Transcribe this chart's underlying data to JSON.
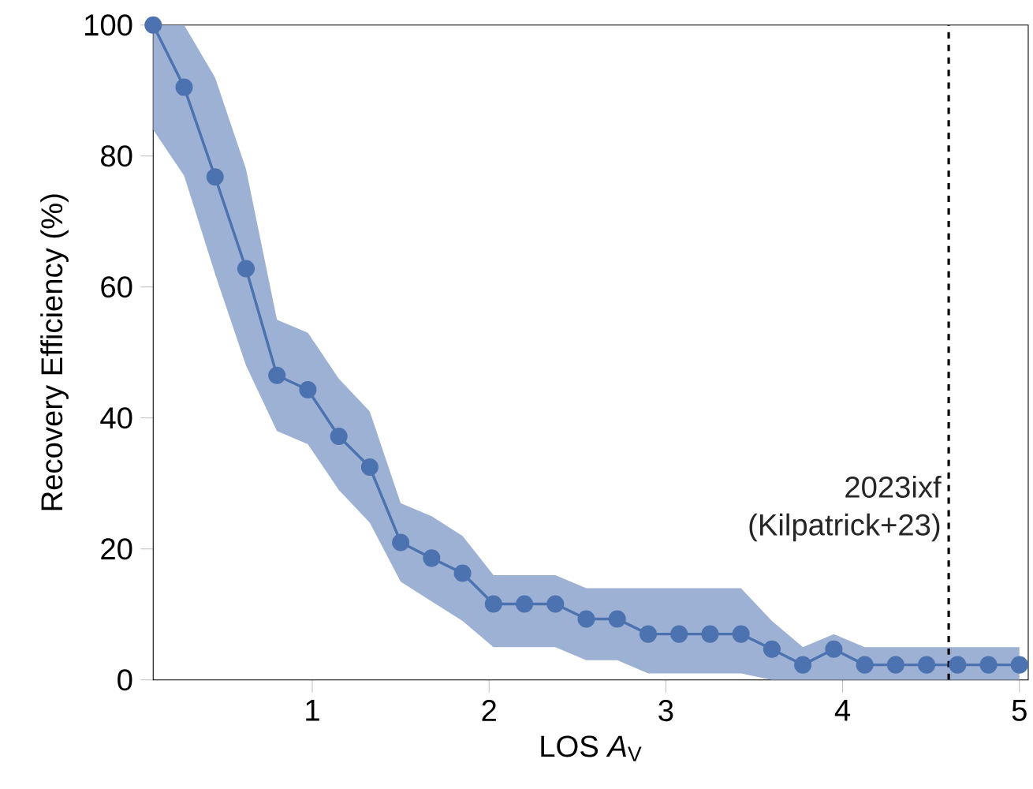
{
  "chart_data": {
    "type": "line",
    "xlabel": "LOS *A*$_{V}$",
    "ylabel": "Recovery Efficiency (%)",
    "x": [
      0.1,
      0.275,
      0.45,
      0.625,
      0.8,
      0.975,
      1.15,
      1.325,
      1.5,
      1.675,
      1.85,
      2.025,
      2.2,
      2.375,
      2.55,
      2.725,
      2.9,
      3.075,
      3.25,
      3.425,
      3.6,
      3.775,
      3.95,
      4.125,
      4.3,
      4.475,
      4.65,
      4.825,
      5.0
    ],
    "series": [
      {
        "color": "#4c72b0",
        "values": [
          100,
          90.5,
          76.8,
          62.8,
          46.5,
          44.3,
          37.2,
          32.5,
          21,
          18.6,
          16.3,
          11.6,
          11.6,
          11.6,
          9.3,
          9.3,
          7,
          7,
          7,
          7,
          4.7,
          2.3,
          4.7,
          2.3,
          2.3,
          2.3,
          2.3,
          2.3,
          2.3
        ],
        "lower": [
          84,
          77,
          62,
          48,
          38,
          36,
          29,
          24,
          15,
          12,
          9,
          5,
          5,
          5,
          3,
          3,
          1,
          1,
          1,
          1,
          0,
          0,
          0,
          0,
          0,
          0,
          0,
          0,
          0
        ],
        "upper": [
          100,
          100,
          92,
          78,
          55,
          53,
          46,
          41,
          27,
          25,
          22,
          16,
          16,
          16,
          14,
          14,
          14,
          14,
          14,
          14,
          9,
          5,
          7,
          5,
          5,
          5,
          5,
          5,
          5
        ]
      }
    ],
    "marker": "circle",
    "line_style": "solid",
    "grid": false,
    "xlim": [
      0.1,
      5.05
    ],
    "ylim": [
      0,
      100
    ],
    "xticks": [
      1,
      2,
      3,
      4,
      5
    ],
    "yticks": [
      0,
      20,
      40,
      60,
      80,
      100
    ],
    "ref_lines": [
      {
        "axis": "x",
        "value": 4.6,
        "label": "2023ixf (Kilpatrick+23)",
        "line_style": "dashed",
        "color": "#000000"
      }
    ]
  }
}
